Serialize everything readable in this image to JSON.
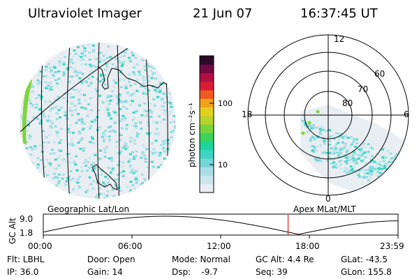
{
  "header": {
    "instrument": "Ultraviolet Imager",
    "date": "21 Jun 07",
    "time": "16:37:45 UT"
  },
  "left_panel_label": "Geographic Lat/Lon",
  "right_panel_label": "Apex MLat/MLT",
  "colorbar": {
    "unit_label": "photon cm⁻²s⁻¹",
    "ticks": [
      "100",
      "10"
    ],
    "colors": [
      "#e9eef2",
      "#c9e6ee",
      "#a8dde8",
      "#74d5db",
      "#3dd6c4",
      "#1fd49a",
      "#3bd35a",
      "#7ad23a",
      "#b8d32a",
      "#e4cf20",
      "#f2a21a",
      "#ee5a20",
      "#d81e36",
      "#b01040",
      "#6e0b44",
      "#2b0a2a"
    ]
  },
  "polar": {
    "mlt_labels": [
      "12",
      "18",
      "6",
      "0"
    ],
    "mlat_labels": [
      "60",
      "70",
      "80"
    ]
  },
  "timeline": {
    "ylabel": "GC Alt",
    "yticks": [
      "9.0",
      "1.8"
    ],
    "xticks": [
      "00:00",
      "06:00",
      "12:00",
      "18:00",
      "23:59"
    ],
    "current_time_fraction": 0.69
  },
  "status": {
    "row1": [
      {
        "key": "flt",
        "text": "Flt: LBHL"
      },
      {
        "key": "door",
        "text": "Door: Open"
      },
      {
        "key": "mode",
        "text": "Mode: Normal"
      },
      {
        "key": "gcalt",
        "text": "GC Alt: 4.4 Re"
      },
      {
        "key": "glat",
        "text": "GLat: -43.5"
      }
    ],
    "row2": [
      {
        "key": "ip",
        "text": "IP: 36.0"
      },
      {
        "key": "gain",
        "text": "Gain: 14"
      },
      {
        "key": "dsp",
        "text": "Dsp:    -9.7"
      },
      {
        "key": "seq",
        "text": "Seq: 39"
      },
      {
        "key": "glon",
        "text": "GLon: 155.8"
      }
    ]
  },
  "colors": {
    "foreground": "#000000",
    "background": "#ffffff",
    "time_marker": "#cc0000",
    "aurora_low": "#8fe0dc",
    "aurora_high": "#7fd63a"
  }
}
